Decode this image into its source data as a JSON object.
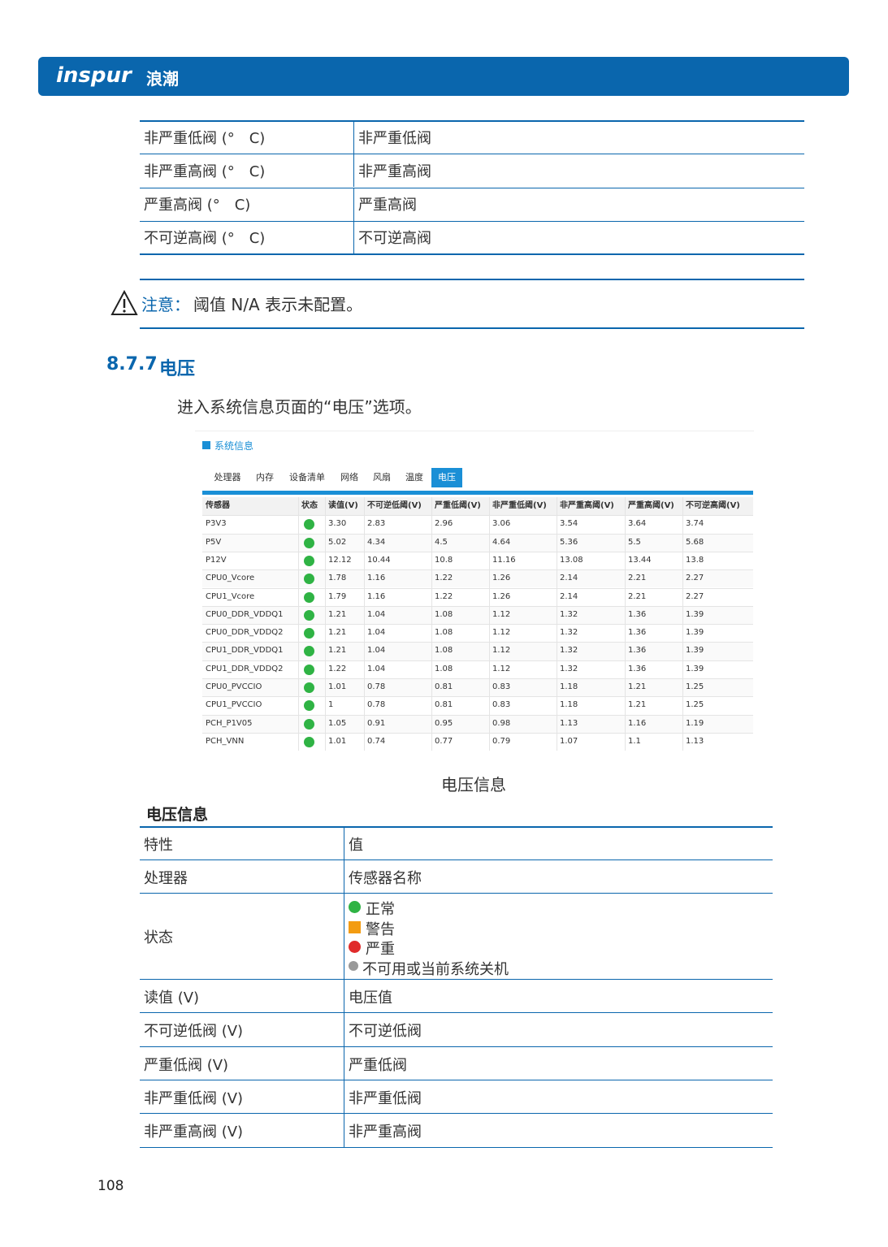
{
  "header": {
    "brand": "inspur",
    "brand_cn": "浪潮"
  },
  "top_table": {
    "rows": [
      [
        "非严重低阀 (°　C)",
        "非严重低阀"
      ],
      [
        "非严重高阀 (°　C)",
        "非严重高阀"
      ],
      [
        "严重高阀 (°　C)",
        "严重高阀"
      ],
      [
        "不可逆高阀 (°　C)",
        "不可逆高阀"
      ]
    ]
  },
  "note": {
    "label": "注意：",
    "text": "阈值 N/A 表示未配置。"
  },
  "section": {
    "number": "8.7.7",
    "title": "电压"
  },
  "intro": "进入系统信息页面的“电压”选项。",
  "screenshot": {
    "title": "系统信息",
    "tabs": [
      "处理器",
      "内存",
      "设备清单",
      "网络",
      "风扇",
      "温度",
      "电压"
    ],
    "columns": [
      "传感器",
      "状态",
      "读值(V)",
      "不可逆低阈(V)",
      "严重低阈(V)",
      "非严重低阈(V)",
      "非严重高阈(V)",
      "严重高阈(V)",
      "不可逆高阈(V)"
    ],
    "rows": [
      [
        "P3V3",
        "3.30",
        "2.83",
        "2.96",
        "3.06",
        "3.54",
        "3.64",
        "3.74"
      ],
      [
        "P5V",
        "5.02",
        "4.34",
        "4.5",
        "4.64",
        "5.36",
        "5.5",
        "5.68"
      ],
      [
        "P12V",
        "12.12",
        "10.44",
        "10.8",
        "11.16",
        "13.08",
        "13.44",
        "13.8"
      ],
      [
        "CPU0_Vcore",
        "1.78",
        "1.16",
        "1.22",
        "1.26",
        "2.14",
        "2.21",
        "2.27"
      ],
      [
        "CPU1_Vcore",
        "1.79",
        "1.16",
        "1.22",
        "1.26",
        "2.14",
        "2.21",
        "2.27"
      ],
      [
        "CPU0_DDR_VDDQ1",
        "1.21",
        "1.04",
        "1.08",
        "1.12",
        "1.32",
        "1.36",
        "1.39"
      ],
      [
        "CPU0_DDR_VDDQ2",
        "1.21",
        "1.04",
        "1.08",
        "1.12",
        "1.32",
        "1.36",
        "1.39"
      ],
      [
        "CPU1_DDR_VDDQ1",
        "1.21",
        "1.04",
        "1.08",
        "1.12",
        "1.32",
        "1.36",
        "1.39"
      ],
      [
        "CPU1_DDR_VDDQ2",
        "1.22",
        "1.04",
        "1.08",
        "1.12",
        "1.32",
        "1.36",
        "1.39"
      ],
      [
        "CPU0_PVCCIO",
        "1.01",
        "0.78",
        "0.81",
        "0.83",
        "1.18",
        "1.21",
        "1.25"
      ],
      [
        "CPU1_PVCCIO",
        "1",
        "0.78",
        "0.81",
        "0.83",
        "1.18",
        "1.21",
        "1.25"
      ],
      [
        "PCH_P1V05",
        "1.05",
        "0.91",
        "0.95",
        "0.98",
        "1.13",
        "1.16",
        "1.19"
      ],
      [
        "PCH_VNN",
        "1.01",
        "0.74",
        "0.77",
        "0.79",
        "1.07",
        "1.1",
        "1.13"
      ]
    ]
  },
  "caption": "电压信息",
  "info_table": {
    "title": "电压信息",
    "header": [
      "特性",
      "值"
    ],
    "rows": [
      [
        "处理器",
        "传感器名称"
      ],
      [
        "状态",
        [
          "正常",
          "警告",
          "严重",
          "不可用或当前系统关机"
        ]
      ],
      [
        "读值 (V)",
        "电压值"
      ],
      [
        "不可逆低阀 (V)",
        "不可逆低阀"
      ],
      [
        "严重低阀 (V)",
        "严重低阀"
      ],
      [
        "非严重低阀 (V)",
        "非严重低阀"
      ],
      [
        "非严重高阀 (V)",
        "非严重高阀"
      ]
    ]
  },
  "page_number": "108"
}
